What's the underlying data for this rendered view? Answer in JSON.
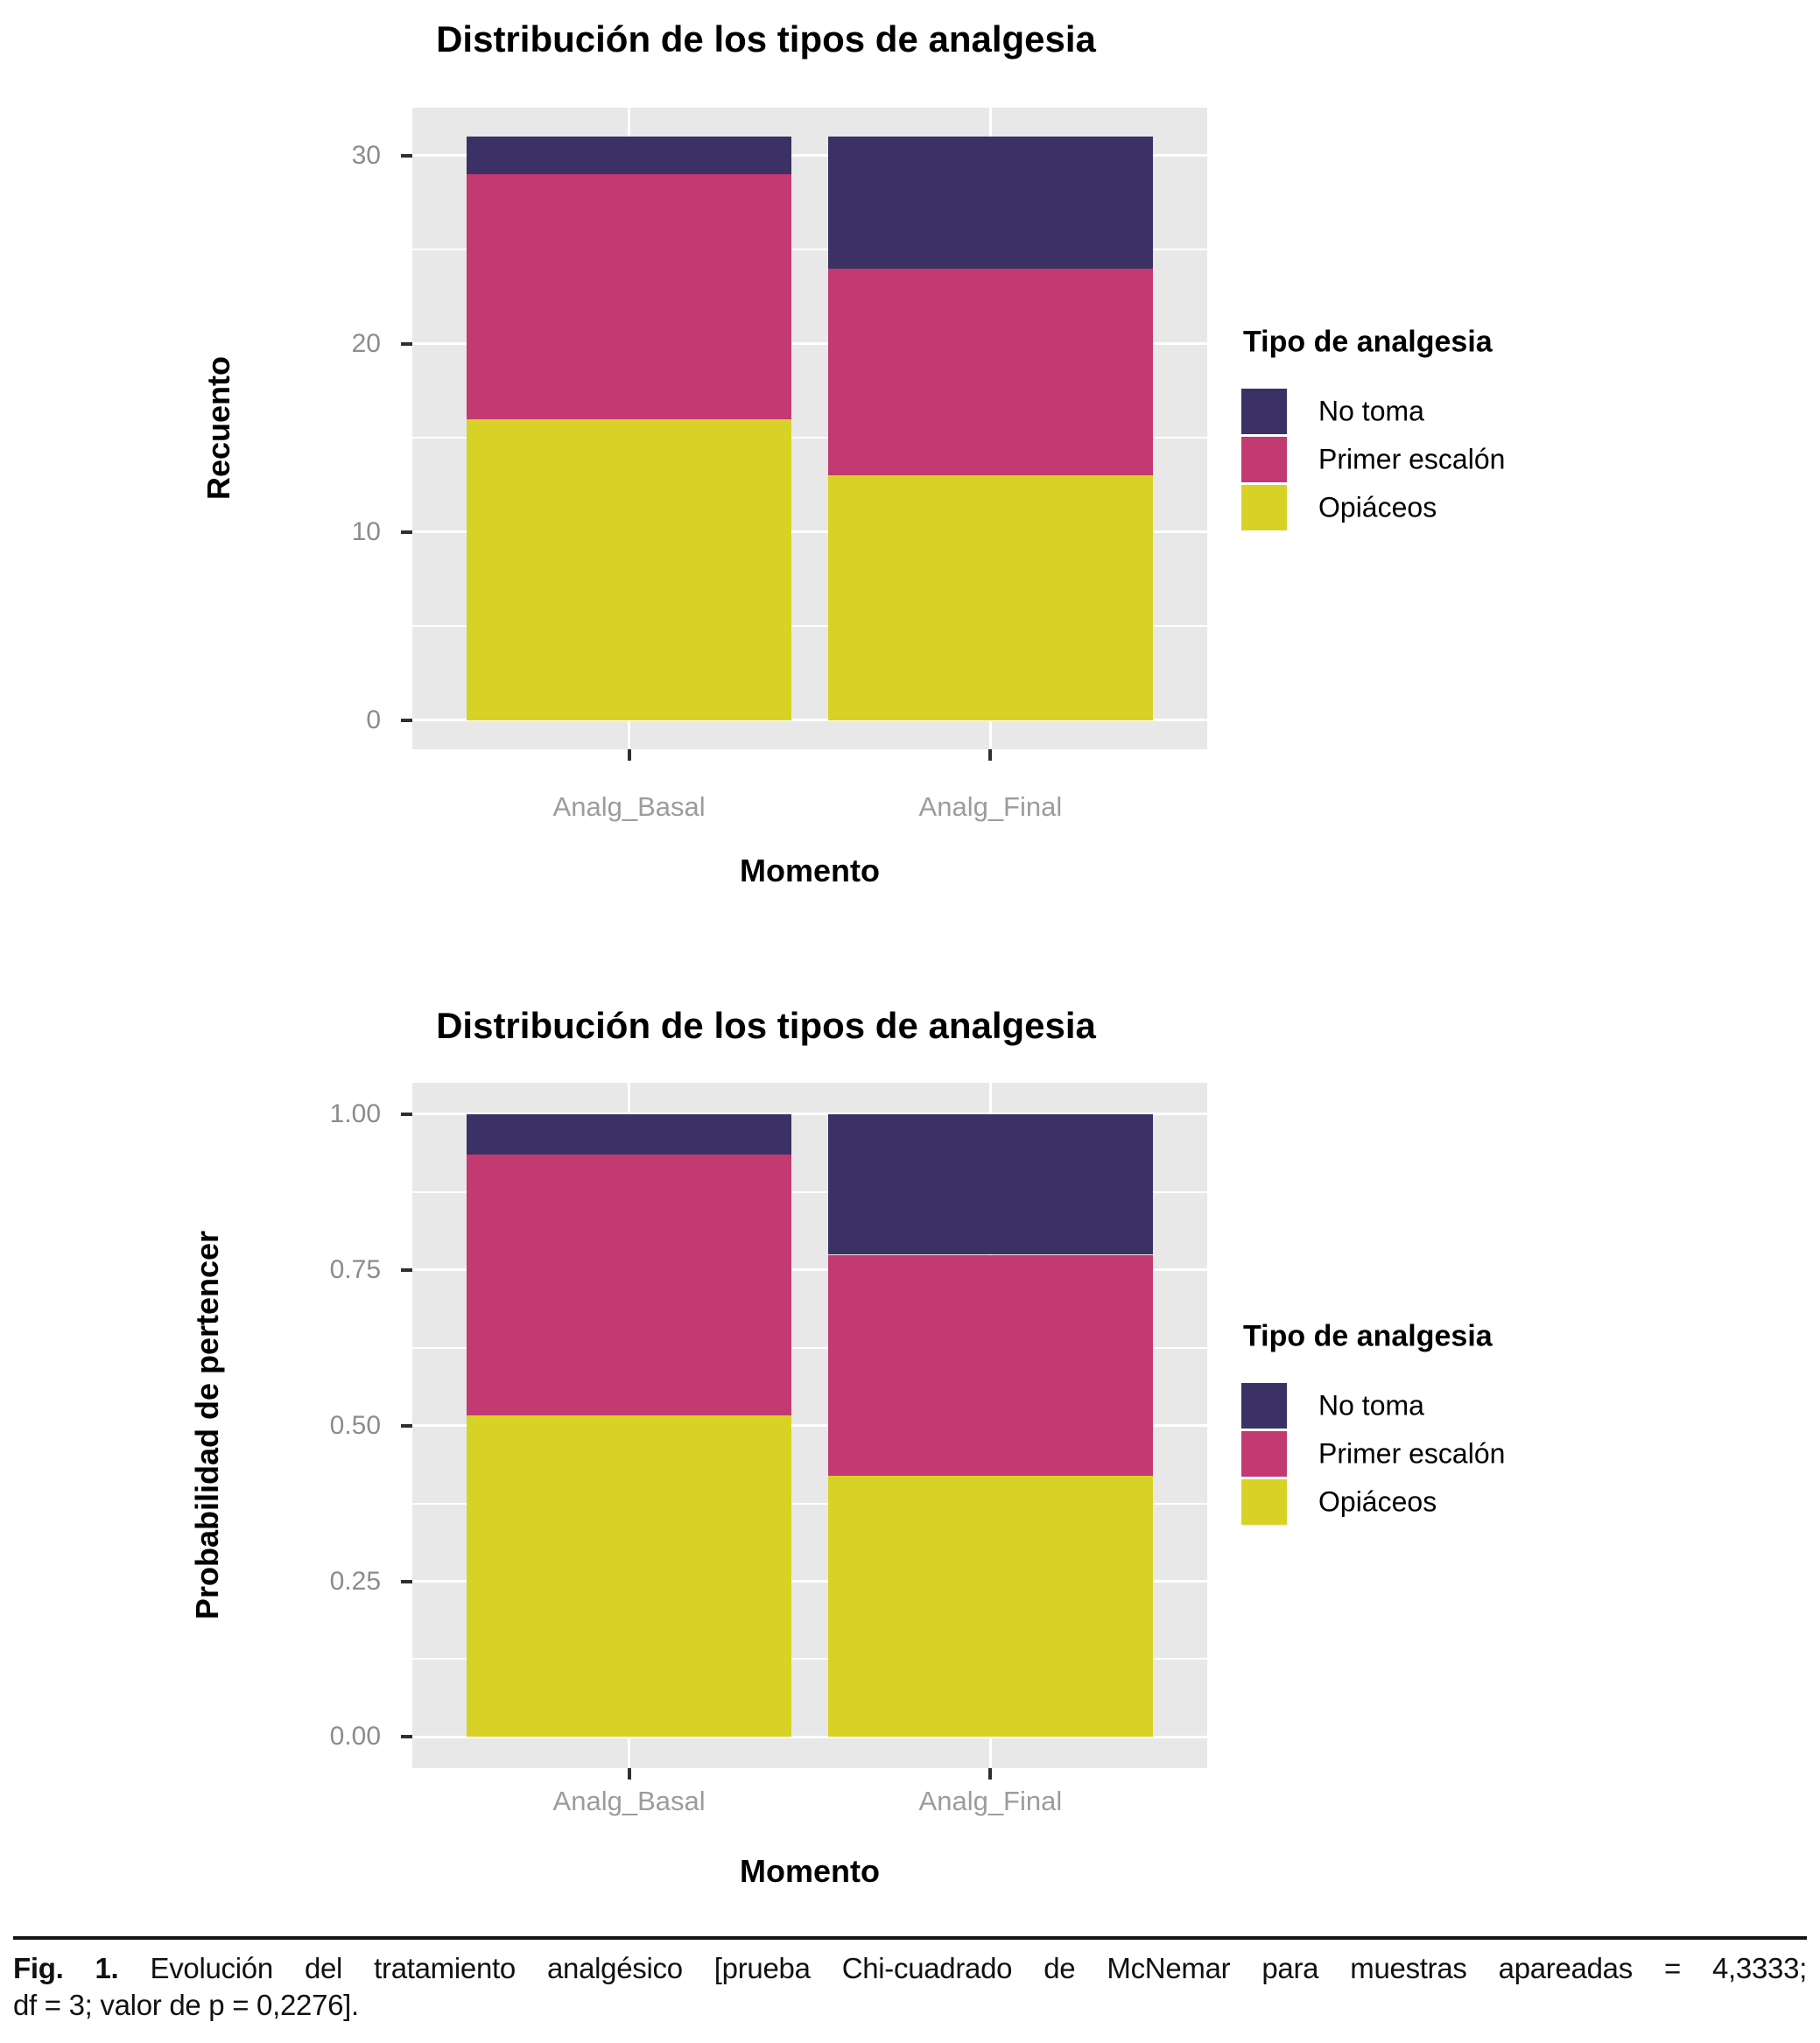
{
  "chart_data": [
    {
      "type": "bar",
      "stacked": true,
      "title": "Distribución de los tipos de analgesia",
      "xlabel": "Momento",
      "ylabel": "Recuento",
      "categories": [
        "Analg_Basal",
        "Analg_Final"
      ],
      "series": [
        {
          "name": "Opiáceos",
          "color": "#d8d226",
          "values": [
            16,
            13
          ]
        },
        {
          "name": "Primer escalón",
          "color": "#c23a71",
          "values": [
            13,
            11
          ]
        },
        {
          "name": "No toma",
          "color": "#3c3164",
          "values": [
            2,
            7
          ]
        }
      ],
      "totals": [
        31,
        31
      ],
      "ylim": [
        0,
        31
      ],
      "y_ticks": [
        0,
        10,
        20,
        30
      ],
      "y_tick_labels": [
        "0",
        "10",
        "20",
        "30"
      ],
      "legend_title": "Tipo de analgesia",
      "legend_items": [
        "No toma",
        "Primer escalón",
        "Opiáceos"
      ],
      "legend_position": "right",
      "grid": true
    },
    {
      "type": "bar",
      "stacked": true,
      "title": "Distribución de los tipos de analgesia",
      "xlabel": "Momento",
      "ylabel": "Probabilidad de pertencer",
      "categories": [
        "Analg_Basal",
        "Analg_Final"
      ],
      "series": [
        {
          "name": "Opiáceos",
          "color": "#d8d226",
          "values": [
            0.516,
            0.419
          ]
        },
        {
          "name": "Primer escalón",
          "color": "#c23a71",
          "values": [
            0.419,
            0.355
          ]
        },
        {
          "name": "No toma",
          "color": "#3c3164",
          "values": [
            0.065,
            0.226
          ]
        }
      ],
      "totals": [
        1.0,
        1.0
      ],
      "ylim": [
        0,
        1
      ],
      "y_ticks": [
        0,
        0.25,
        0.5,
        0.75,
        1
      ],
      "y_tick_labels": [
        "0.00",
        "0.25",
        "0.50",
        "0.75",
        "1.00"
      ],
      "legend_title": "Tipo de analgesia",
      "legend_items": [
        "No toma",
        "Primer escalón",
        "Opiáceos"
      ],
      "legend_position": "right",
      "grid": true
    }
  ],
  "colors": {
    "panel_background": "#e8e8e8",
    "gridline": "#ffffff",
    "axis_text": "#8c8c8c",
    "category_text": "#9c9c9c",
    "tick_mark": "#2f2f2f"
  },
  "caption": {
    "label": "Fig. 1.",
    "line1": "Evolución del tratamiento analgésico [prueba Chi-cuadrado de McNemar para muestras apareadas = 4,3333;",
    "line2": "df = 3; valor de p = 0,2276].",
    "full_text": "Fig. 1. Evolución del tratamiento analgésico [prueba Chi-cuadrado de McNemar para muestras apareadas = 4,3333; df = 3; valor de p = 0,2276]."
  }
}
